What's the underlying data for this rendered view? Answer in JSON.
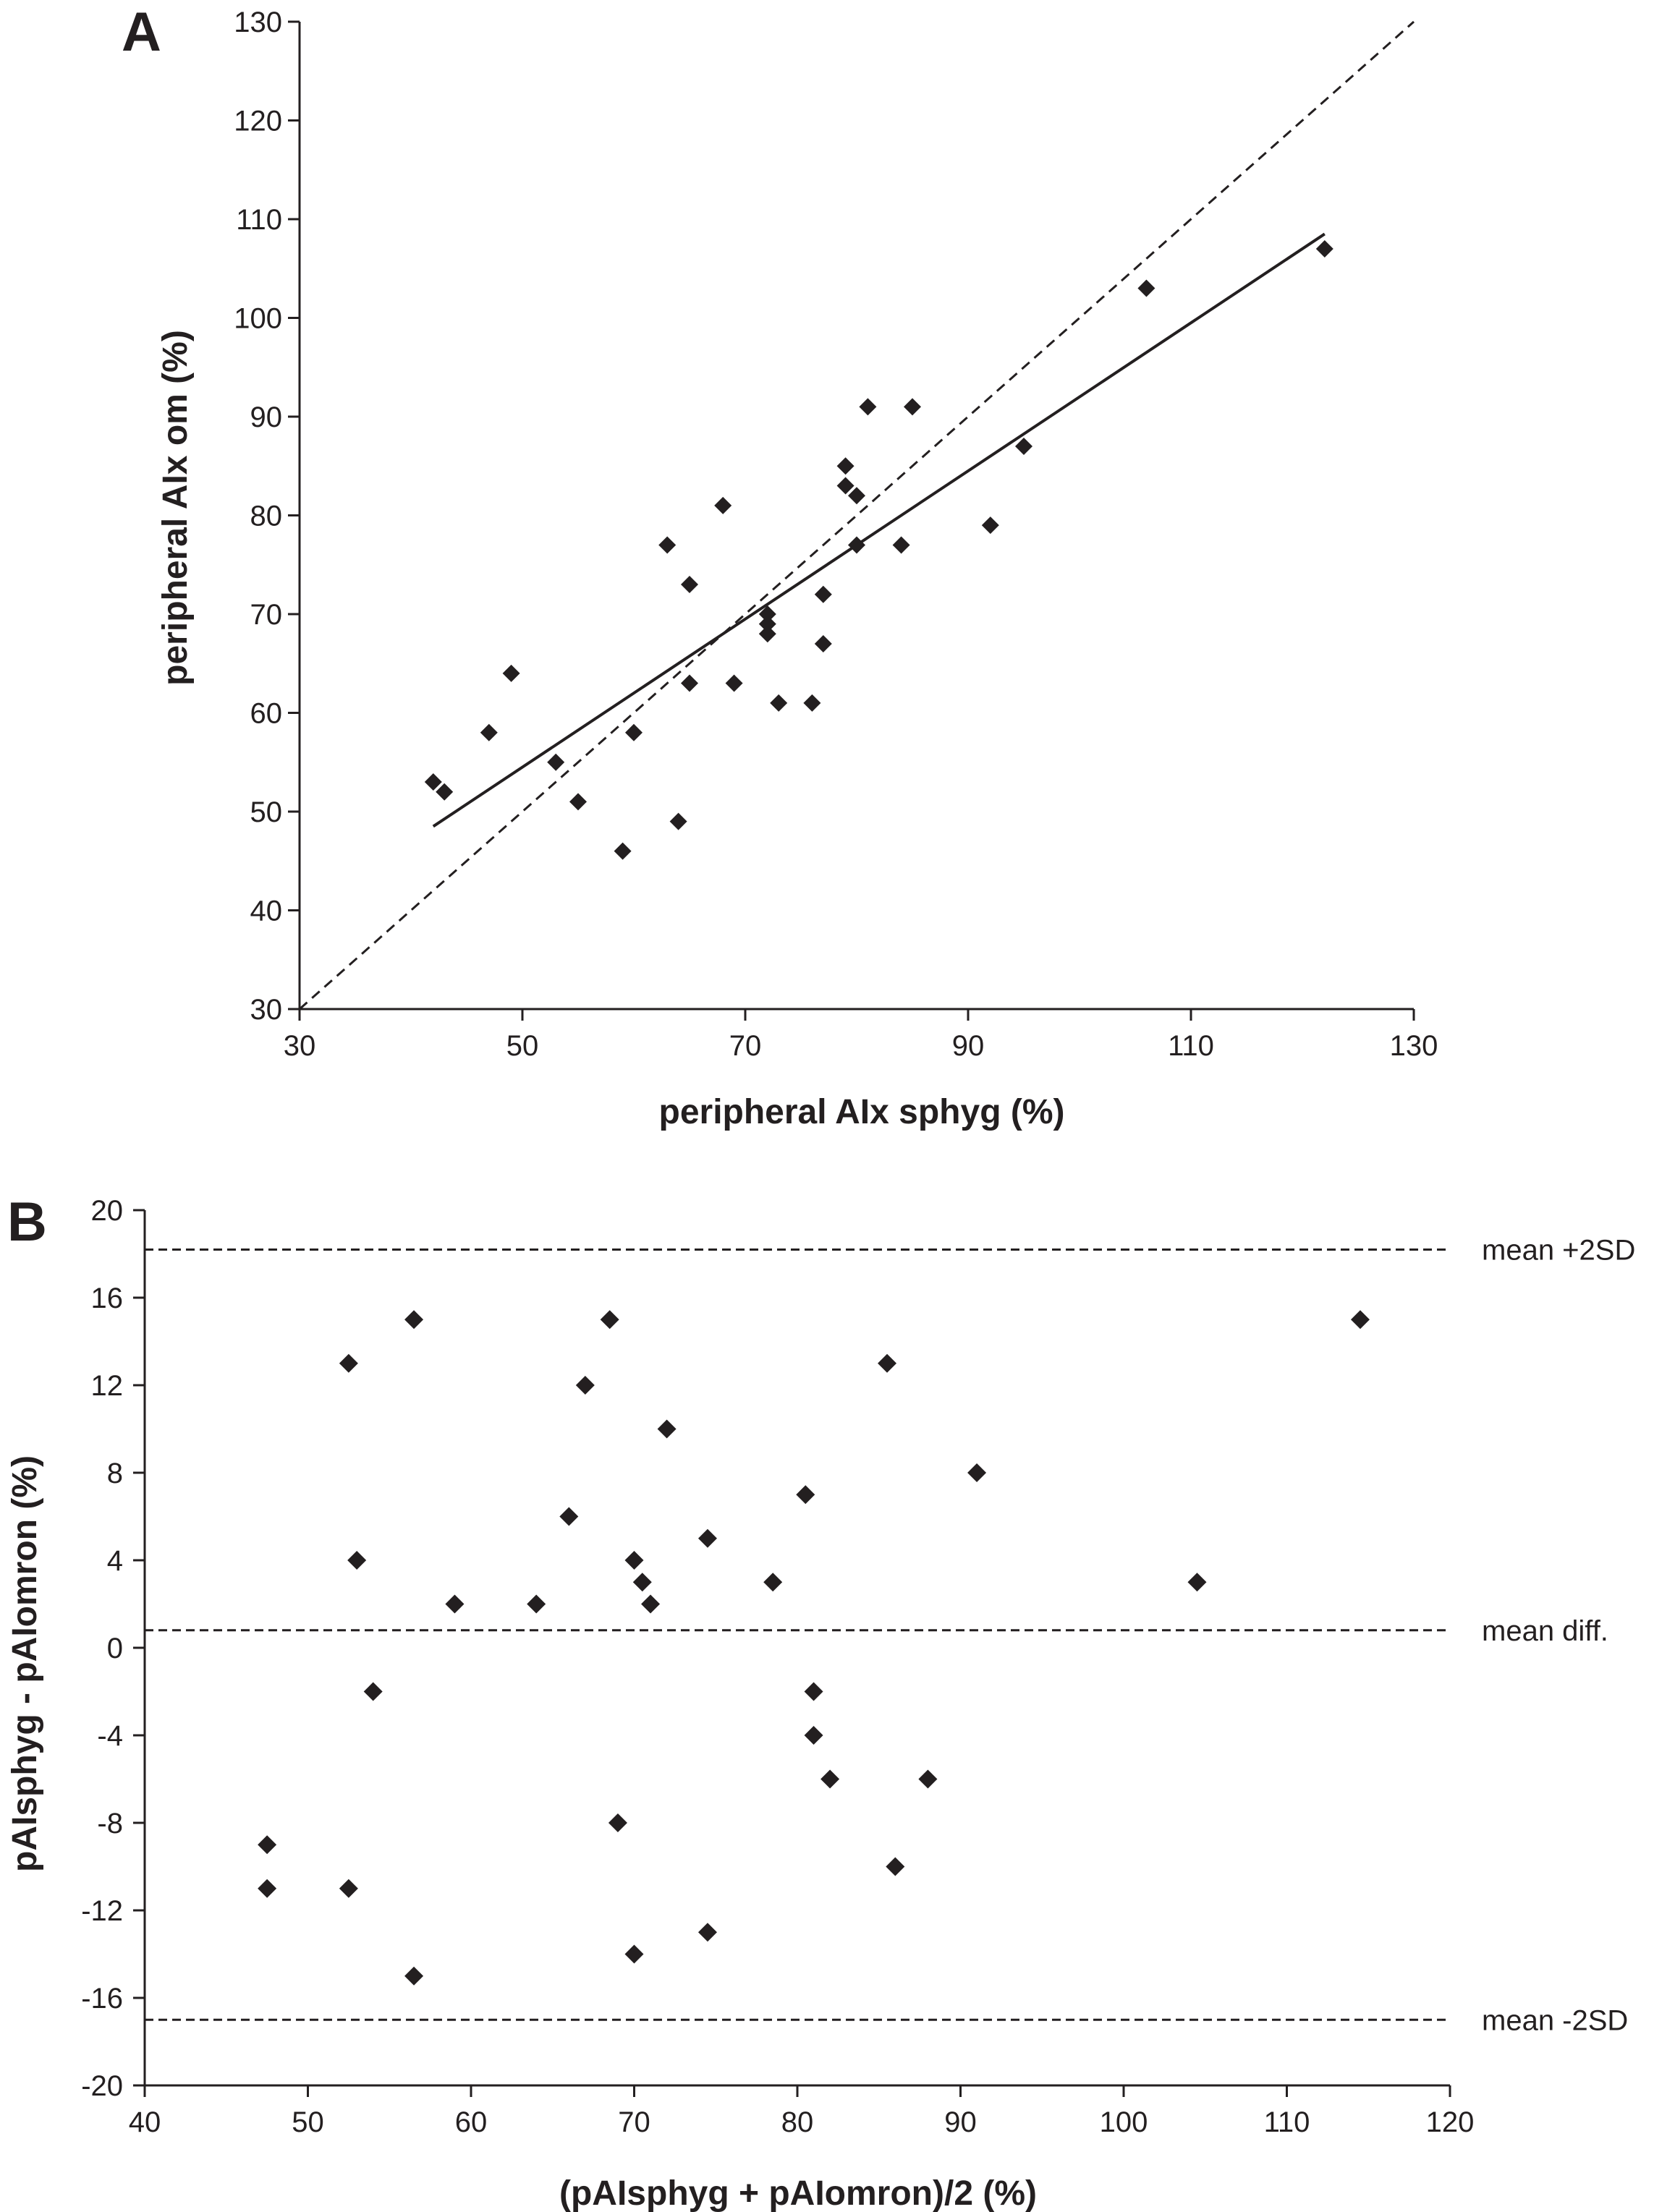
{
  "chart_data": [
    {
      "panel": "A",
      "type": "scatter",
      "xlabel": "peripheral AIx sphyg (%)",
      "ylabel": "peripheral AIx om (%)",
      "xlim": [
        30,
        130
      ],
      "ylim": [
        30,
        130
      ],
      "xticks": [
        30,
        50,
        70,
        90,
        110,
        130
      ],
      "yticks": [
        30,
        40,
        50,
        60,
        70,
        80,
        90,
        100,
        110,
        120,
        130
      ],
      "points": [
        {
          "x": 42,
          "y": 53
        },
        {
          "x": 43,
          "y": 52
        },
        {
          "x": 47,
          "y": 58
        },
        {
          "x": 49,
          "y": 64
        },
        {
          "x": 53,
          "y": 55
        },
        {
          "x": 55,
          "y": 51
        },
        {
          "x": 59,
          "y": 46
        },
        {
          "x": 60,
          "y": 58
        },
        {
          "x": 63,
          "y": 77
        },
        {
          "x": 64,
          "y": 49
        },
        {
          "x": 65,
          "y": 73
        },
        {
          "x": 65,
          "y": 63
        },
        {
          "x": 68,
          "y": 81
        },
        {
          "x": 69,
          "y": 63
        },
        {
          "x": 72,
          "y": 70
        },
        {
          "x": 72,
          "y": 69
        },
        {
          "x": 72,
          "y": 68
        },
        {
          "x": 73,
          "y": 61
        },
        {
          "x": 76,
          "y": 61
        },
        {
          "x": 77,
          "y": 72
        },
        {
          "x": 77,
          "y": 67
        },
        {
          "x": 79,
          "y": 85
        },
        {
          "x": 79,
          "y": 83
        },
        {
          "x": 80,
          "y": 82
        },
        {
          "x": 80,
          "y": 77
        },
        {
          "x": 81,
          "y": 91
        },
        {
          "x": 84,
          "y": 77
        },
        {
          "x": 85,
          "y": 91
        },
        {
          "x": 92,
          "y": 79
        },
        {
          "x": 95,
          "y": 87
        },
        {
          "x": 106,
          "y": 103
        },
        {
          "x": 122,
          "y": 107
        }
      ],
      "identity_line": {
        "from": [
          30,
          30
        ],
        "to": [
          130,
          130
        ],
        "style": "dashed"
      },
      "regression_line": {
        "from": [
          42,
          48.5
        ],
        "to": [
          122,
          108.5
        ],
        "style": "solid"
      }
    },
    {
      "panel": "B",
      "type": "scatter",
      "xlabel": "(pAIsphyg + pAIomron)/2 (%)",
      "ylabel": "pAIsphyg - pAIomron (%)",
      "xlim": [
        40,
        120
      ],
      "ylim": [
        -20,
        20
      ],
      "xticks": [
        40,
        50,
        60,
        70,
        80,
        90,
        100,
        110,
        120
      ],
      "yticks": [
        -20,
        -16,
        -12,
        -8,
        -4,
        0,
        4,
        8,
        12,
        16,
        20
      ],
      "points": [
        {
          "x": 47.5,
          "y": -9
        },
        {
          "x": 47.5,
          "y": -11
        },
        {
          "x": 52.5,
          "y": 13
        },
        {
          "x": 52.5,
          "y": -11
        },
        {
          "x": 53,
          "y": 4
        },
        {
          "x": 54,
          "y": -2
        },
        {
          "x": 56.5,
          "y": 15
        },
        {
          "x": 56.5,
          "y": -15
        },
        {
          "x": 59,
          "y": 2
        },
        {
          "x": 64,
          "y": 2
        },
        {
          "x": 66,
          "y": 6
        },
        {
          "x": 67,
          "y": 12
        },
        {
          "x": 68.5,
          "y": 15
        },
        {
          "x": 69,
          "y": -8
        },
        {
          "x": 70,
          "y": 4
        },
        {
          "x": 70,
          "y": -14
        },
        {
          "x": 70.5,
          "y": 3
        },
        {
          "x": 71,
          "y": 2
        },
        {
          "x": 72,
          "y": 10
        },
        {
          "x": 74.5,
          "y": 5
        },
        {
          "x": 74.5,
          "y": -13
        },
        {
          "x": 78.5,
          "y": 3
        },
        {
          "x": 80.5,
          "y": 7
        },
        {
          "x": 81,
          "y": -2
        },
        {
          "x": 81,
          "y": -4
        },
        {
          "x": 82,
          "y": -6
        },
        {
          "x": 85.5,
          "y": 13
        },
        {
          "x": 86,
          "y": -10
        },
        {
          "x": 88,
          "y": -6
        },
        {
          "x": 91,
          "y": 8
        },
        {
          "x": 104.5,
          "y": 3
        },
        {
          "x": 114.5,
          "y": 15
        }
      ],
      "reference_lines": [
        {
          "label": "mean +2SD",
          "y": 18.2,
          "style": "dashed"
        },
        {
          "label": "mean diff.",
          "y": 0.8,
          "style": "dashed"
        },
        {
          "label": "mean -2SD",
          "y": -17,
          "style": "dashed"
        }
      ]
    }
  ]
}
